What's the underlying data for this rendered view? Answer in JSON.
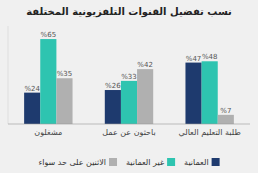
{
  "chart_data": {
    "type": "bar",
    "title": "نسب تفضيل القنوات التلفزيونية المختلفة",
    "categories": [
      "مشغلون",
      "باحثون عن عمل",
      "طلبة التعليم العالي"
    ],
    "series": [
      {
        "name": "العمانية",
        "color": "#1e3a6e",
        "values": [
          24,
          26,
          47
        ],
        "value_labels": [
          "%24",
          "%26",
          "%47"
        ]
      },
      {
        "name": "غير العمانية",
        "color": "#2ec4b0",
        "values": [
          65,
          33,
          48
        ],
        "value_labels": [
          "%65",
          "%33",
          "%48"
        ]
      },
      {
        "name": "الاثنين على حد سواء",
        "color": "#b0b0b0",
        "values": [
          35,
          42,
          7
        ],
        "value_labels": [
          "%35",
          "%42",
          "%7"
        ]
      }
    ],
    "ylim": [
      0,
      75
    ],
    "grid": false,
    "legend": "bottom",
    "data_labels": true,
    "tick_labels": "x"
  }
}
